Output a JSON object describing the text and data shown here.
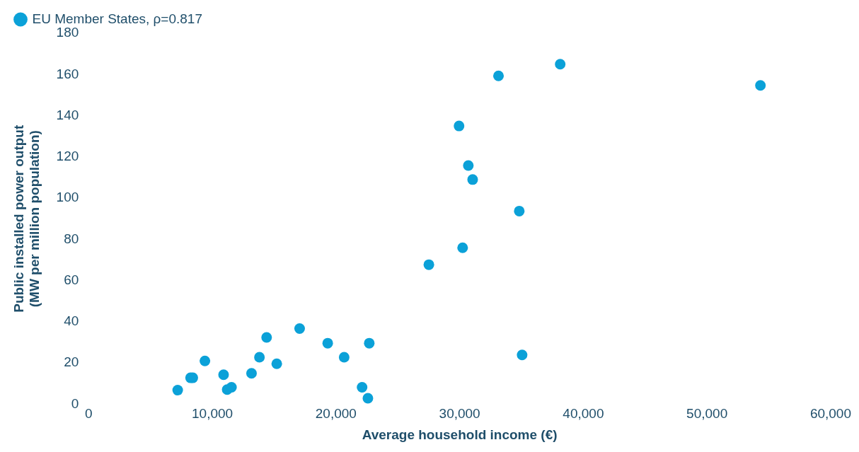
{
  "chart_data": {
    "type": "scatter",
    "xlabel": "Average household income (€)",
    "ylabel": "Public installed power output\n(MW per million population)",
    "xlim": [
      0,
      60000
    ],
    "xticks": [
      {
        "value": 0,
        "label": "0"
      },
      {
        "value": 10000,
        "label": "10,000"
      },
      {
        "value": 20000,
        "label": "20,000"
      },
      {
        "value": 30000,
        "label": "30,000"
      },
      {
        "value": 40000,
        "label": "40,000"
      },
      {
        "value": 50000,
        "label": "50,000"
      },
      {
        "value": 60000,
        "label": "60,000"
      }
    ],
    "ylim": [
      0,
      180
    ],
    "yticks": [
      0,
      20,
      40,
      60,
      80,
      100,
      120,
      140,
      160,
      180
    ],
    "grid": false,
    "legend": "top left",
    "marker": "circle",
    "series": [
      {
        "name": "EU Member States, ρ=0.817",
        "color": "#0ba1d8",
        "x": [
          7200,
          8240,
          8420,
          9400,
          10910,
          11200,
          11550,
          13170,
          13810,
          14390,
          15210,
          17060,
          19330,
          20660,
          22110,
          22580,
          22690,
          27510,
          29950,
          30240,
          30700,
          31050,
          33140,
          34820,
          35050,
          38130,
          54320
        ],
        "values": [
          6.8,
          12.8,
          12.8,
          21,
          14.3,
          7.1,
          8.2,
          15,
          22.8,
          32.4,
          19.6,
          36.7,
          29.6,
          22.8,
          8.2,
          2.9,
          29.6,
          67.7,
          135,
          75.9,
          115.8,
          109,
          159.3,
          93.7,
          23.9,
          165,
          154.7
        ]
      }
    ]
  }
}
